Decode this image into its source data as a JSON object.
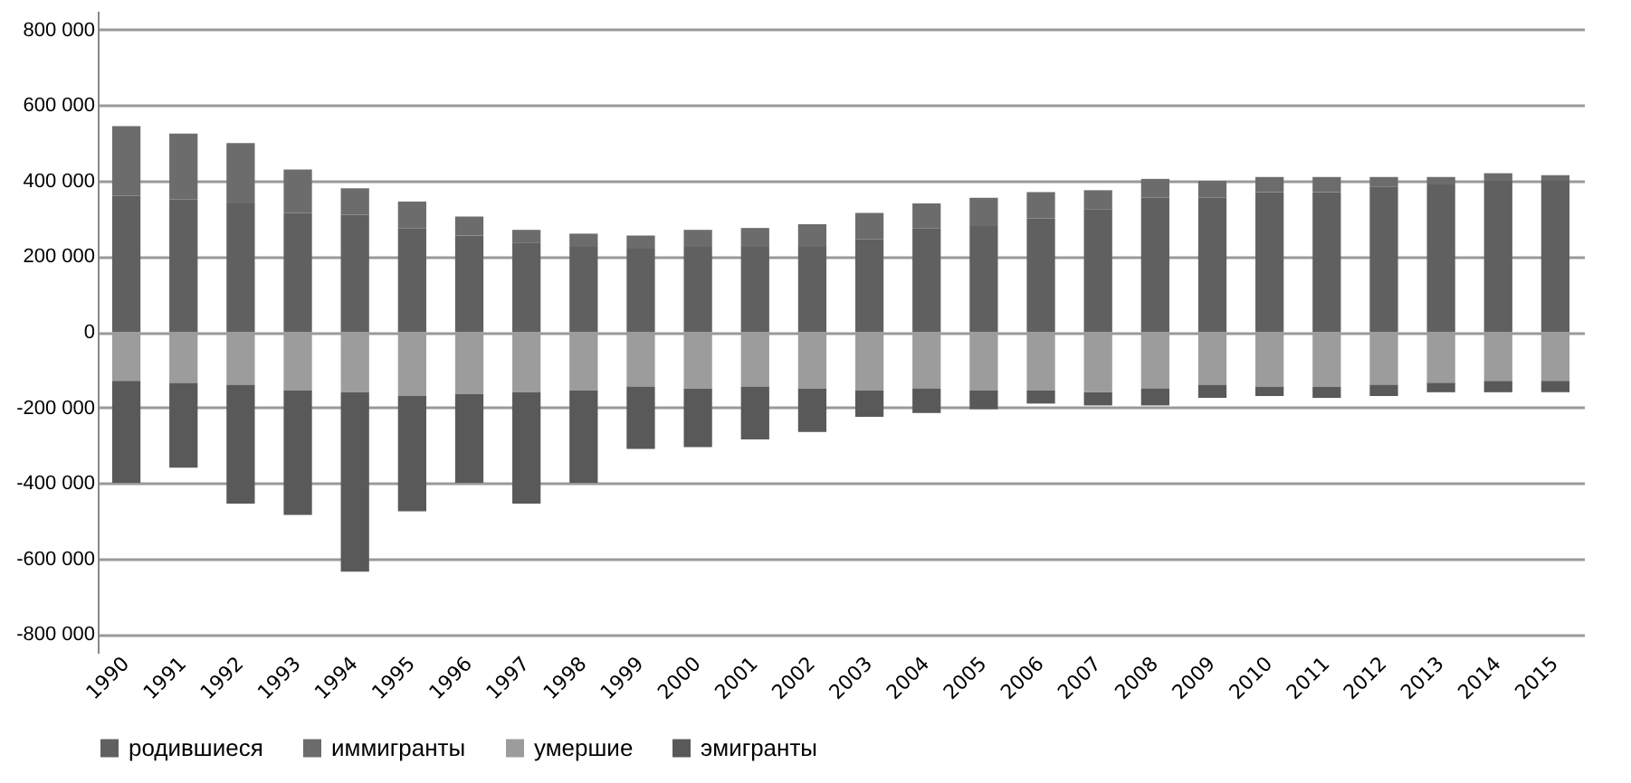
{
  "chart_data": {
    "type": "bar",
    "stacked": true,
    "categories": [
      "1990",
      "1991",
      "1992",
      "1993",
      "1994",
      "1995",
      "1996",
      "1997",
      "1998",
      "1999",
      "2000",
      "2001",
      "2002",
      "2003",
      "2004",
      "2005",
      "2006",
      "2007",
      "2008",
      "2009",
      "2010",
      "2011",
      "2012",
      "2013",
      "2014",
      "2015"
    ],
    "series": [
      {
        "name": "родившиеся",
        "color": "#606060",
        "values": [
          360000,
          350000,
          340000,
          315000,
          310000,
          275000,
          255000,
          235000,
          225000,
          220000,
          225000,
          225000,
          225000,
          245000,
          275000,
          280000,
          300000,
          325000,
          355000,
          355000,
          370000,
          370000,
          385000,
          390000,
          400000,
          400000
        ]
      },
      {
        "name": "иммигранты",
        "color": "#6c6c6c",
        "values": [
          185000,
          175000,
          160000,
          115000,
          70000,
          70000,
          50000,
          35000,
          35000,
          35000,
          45000,
          50000,
          60000,
          70000,
          65000,
          75000,
          70000,
          50000,
          50000,
          45000,
          40000,
          40000,
          25000,
          20000,
          20000,
          15000
        ]
      },
      {
        "name": "умершие",
        "color": "#9c9c9c",
        "values": [
          -130000,
          -135000,
          -140000,
          -155000,
          -160000,
          -170000,
          -165000,
          -160000,
          -155000,
          -145000,
          -150000,
          -145000,
          -150000,
          -155000,
          -150000,
          -155000,
          -155000,
          -160000,
          -150000,
          -140000,
          -145000,
          -145000,
          -140000,
          -135000,
          -130000,
          -130000
        ]
      },
      {
        "name": "эмигранты",
        "color": "#595959",
        "values": [
          -270000,
          -225000,
          -315000,
          -330000,
          -475000,
          -305000,
          -235000,
          -295000,
          -245000,
          -165000,
          -155000,
          -140000,
          -115000,
          -70000,
          -65000,
          -50000,
          -35000,
          -35000,
          -45000,
          -35000,
          -25000,
          -30000,
          -30000,
          -25000,
          -30000,
          -30000
        ]
      }
    ],
    "ylim": [
      -850000,
      850000
    ],
    "yticks": [
      {
        "value": -800000,
        "label": "-800 000"
      },
      {
        "value": -600000,
        "label": "-600 000"
      },
      {
        "value": -400000,
        "label": "-400 000"
      },
      {
        "value": -200000,
        "label": "-200 000"
      },
      {
        "value": 0,
        "label": "0"
      },
      {
        "value": 200000,
        "label": "200 000"
      },
      {
        "value": 400000,
        "label": "400 000"
      },
      {
        "value": 600000,
        "label": "600 000"
      },
      {
        "value": 800000,
        "label": "800 000"
      }
    ],
    "grid": "y",
    "legend": "bottom"
  }
}
